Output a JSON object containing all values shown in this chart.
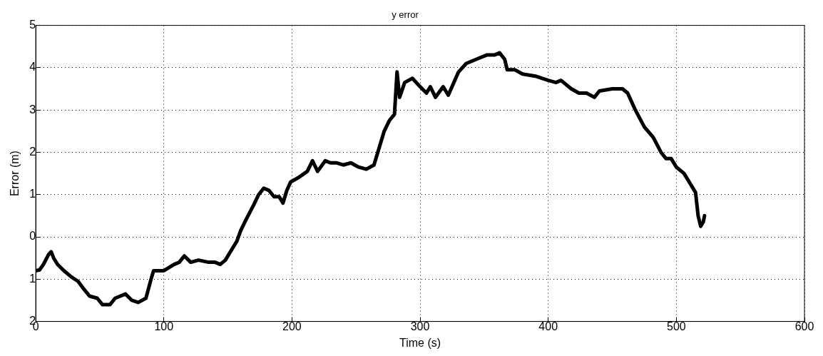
{
  "chart_data": {
    "type": "line",
    "title": "y error",
    "xlabel": "Time (s)",
    "ylabel": "Error (m)",
    "xlim": [
      0,
      600
    ],
    "xticks": [
      0,
      100,
      200,
      300,
      400,
      500,
      600
    ],
    "ylim": [
      -2,
      5
    ],
    "yticks": [
      {
        "value": -2,
        "label": "2"
      },
      {
        "value": -1,
        "label": "1"
      },
      0,
      1,
      2,
      3,
      4,
      5
    ],
    "grid": true,
    "legend": false,
    "marker": "none",
    "line_style": "solid",
    "series": [
      {
        "color": "#000000",
        "x": [
          0,
          3,
          6,
          10,
          12,
          14,
          17,
          22,
          28,
          33,
          38,
          42,
          48,
          52,
          58,
          62,
          66,
          70,
          75,
          80,
          86,
          90,
          92,
          100,
          108,
          112,
          116,
          121,
          127,
          135,
          140,
          144,
          148,
          152,
          157,
          160,
          164,
          170,
          174,
          178,
          182,
          186,
          190,
          193,
          196,
          199,
          205,
          212,
          216,
          220,
          226,
          230,
          235,
          240,
          246,
          252,
          258,
          264,
          268,
          272,
          276,
          280,
          282,
          284,
          288,
          294,
          300,
          305,
          308,
          312,
          318,
          322,
          330,
          336,
          344,
          352,
          358,
          362,
          366,
          368,
          374,
          380,
          390,
          400,
          406,
          410,
          418,
          424,
          430,
          436,
          440,
          450,
          458,
          462,
          468,
          475,
          482,
          488,
          492,
          496,
          500,
          506,
          512,
          515,
          517,
          519,
          521,
          522
        ],
        "values": [
          -0.8,
          -0.78,
          -0.65,
          -0.42,
          -0.35,
          -0.5,
          -0.65,
          -0.8,
          -0.95,
          -1.05,
          -1.25,
          -1.4,
          -1.45,
          -1.6,
          -1.6,
          -1.45,
          -1.4,
          -1.35,
          -1.5,
          -1.55,
          -1.45,
          -1.0,
          -0.8,
          -0.8,
          -0.65,
          -0.6,
          -0.45,
          -0.6,
          -0.55,
          -0.6,
          -0.6,
          -0.65,
          -0.55,
          -0.35,
          -0.1,
          0.15,
          0.4,
          0.75,
          1.0,
          1.15,
          1.1,
          0.95,
          0.95,
          0.8,
          1.1,
          1.3,
          1.4,
          1.55,
          1.8,
          1.55,
          1.8,
          1.75,
          1.75,
          1.7,
          1.75,
          1.65,
          1.6,
          1.7,
          2.1,
          2.5,
          2.75,
          2.9,
          3.9,
          3.3,
          3.65,
          3.75,
          3.55,
          3.4,
          3.55,
          3.3,
          3.55,
          3.35,
          3.9,
          4.1,
          4.2,
          4.3,
          4.3,
          4.35,
          4.2,
          3.95,
          3.95,
          3.85,
          3.8,
          3.7,
          3.65,
          3.7,
          3.5,
          3.4,
          3.4,
          3.3,
          3.45,
          3.5,
          3.5,
          3.4,
          3.0,
          2.6,
          2.35,
          2.0,
          1.85,
          1.85,
          1.65,
          1.5,
          1.2,
          1.05,
          0.5,
          0.25,
          0.35,
          0.5
        ]
      }
    ]
  }
}
